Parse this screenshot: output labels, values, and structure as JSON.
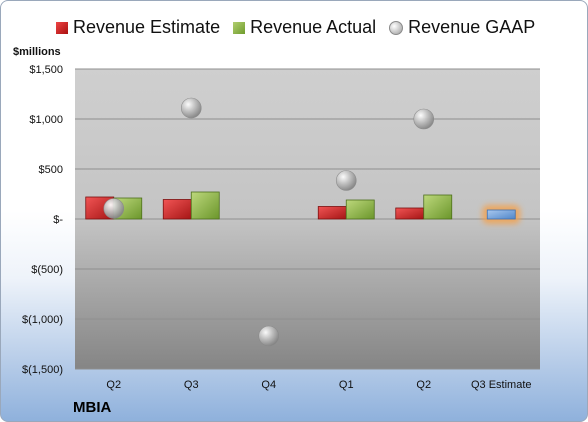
{
  "legend": {
    "estimate": "Revenue Estimate",
    "actual": "Revenue Actual",
    "gaap": "Revenue GAAP"
  },
  "company": "MBIA",
  "chart_data": {
    "type": "bar",
    "ylabel": "$millions",
    "ylim": [
      -1500,
      1500
    ],
    "ytick_values": [
      1500,
      1000,
      500,
      0,
      -500,
      -1000,
      -1500
    ],
    "ytick_labels": [
      "$1,500",
      "$1,000",
      "$500",
      "$-",
      "$(500)",
      "$(1,000)",
      "$(1,500)"
    ],
    "categories": [
      "Q2",
      "Q3",
      "Q4",
      "Q1",
      "Q2",
      "Q3 Estimate"
    ],
    "grid": true,
    "legend_position": "top",
    "series": [
      {
        "name": "Revenue Estimate",
        "kind": "bar",
        "color": "#cc2222",
        "values": [
          220,
          195,
          null,
          125,
          110,
          90
        ]
      },
      {
        "name": "Revenue Actual",
        "kind": "bar",
        "color": "#8db24a",
        "values": [
          210,
          270,
          null,
          190,
          240,
          null
        ]
      },
      {
        "name": "Revenue GAAP",
        "kind": "marker",
        "color": "#b8b8b8",
        "values": [
          105,
          1110,
          -1170,
          385,
          1000,
          null
        ]
      }
    ],
    "estimate_bar_color": "#6fa0d8",
    "estimate_glow_color": "#f5a04a"
  }
}
